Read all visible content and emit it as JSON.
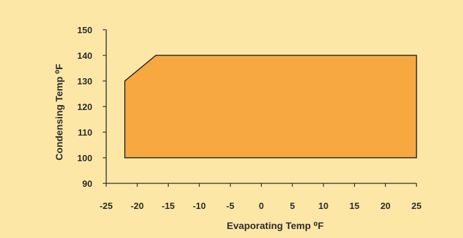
{
  "chart_data": {
    "type": "area",
    "title": "",
    "xlabel": "Evaporating Temp ⁰F",
    "ylabel": "Condensing Temp ⁰F",
    "xlim": [
      -25,
      25
    ],
    "ylim": [
      90,
      150
    ],
    "x_ticks": [
      -25,
      -20,
      -15,
      -10,
      -5,
      0,
      5,
      10,
      15,
      20,
      25
    ],
    "y_ticks": [
      90,
      100,
      110,
      120,
      130,
      140,
      150
    ],
    "grid": false,
    "series": [
      {
        "name": "",
        "x": [
          -22,
          -22,
          -17,
          25,
          25,
          -22
        ],
        "y": [
          100,
          130,
          140,
          140,
          100,
          100
        ]
      }
    ],
    "colors": {
      "background": "#fde7a7",
      "fill": "#f8a840",
      "stroke": "#2b2b2b",
      "axis": "#2b2b2b"
    }
  }
}
